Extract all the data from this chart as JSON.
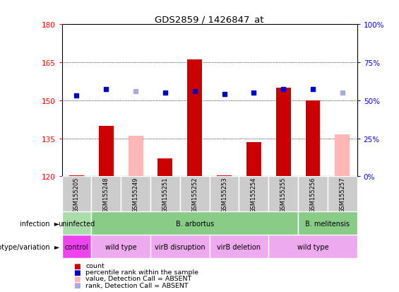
{
  "title": "GDS2859 / 1426847_at",
  "samples": [
    "GSM155205",
    "GSM155248",
    "GSM155249",
    "GSM155251",
    "GSM155252",
    "GSM155253",
    "GSM155254",
    "GSM155255",
    "GSM155256",
    "GSM155257"
  ],
  "bar_values": [
    120.5,
    140.0,
    null,
    127.0,
    166.0,
    120.5,
    133.5,
    155.0,
    150.0,
    null
  ],
  "bar_absent_values": [
    null,
    null,
    136.0,
    null,
    null,
    null,
    null,
    null,
    null,
    136.5
  ],
  "rank_values": [
    152.0,
    154.5,
    null,
    153.0,
    153.5,
    152.5,
    153.0,
    154.5,
    154.5,
    null
  ],
  "rank_absent_values": [
    null,
    null,
    153.5,
    null,
    null,
    null,
    null,
    null,
    null,
    153.0
  ],
  "ylim": [
    120,
    180
  ],
  "yticks": [
    120,
    135,
    150,
    165,
    180
  ],
  "y2lim": [
    0,
    100
  ],
  "y2ticks": [
    0,
    25,
    50,
    75,
    100
  ],
  "y2ticklabels": [
    "0%",
    "25%",
    "50%",
    "75%",
    "100%"
  ],
  "bar_color": "#cc0000",
  "bar_absent_color": "#ffb6b6",
  "rank_color": "#0000cc",
  "rank_absent_color": "#aaaadd",
  "infection_labels": [
    {
      "text": "uninfected",
      "start": 0,
      "end": 1,
      "color": "#aaddaa"
    },
    {
      "text": "B. arbortus",
      "start": 1,
      "end": 8,
      "color": "#88cc88"
    },
    {
      "text": "B. melitensis",
      "start": 8,
      "end": 10,
      "color": "#88cc88"
    }
  ],
  "genotype_labels": [
    {
      "text": "control",
      "start": 0,
      "end": 1,
      "color": "#ee44ee"
    },
    {
      "text": "wild type",
      "start": 1,
      "end": 3,
      "color": "#eeaaee"
    },
    {
      "text": "virB disruption",
      "start": 3,
      "end": 5,
      "color": "#eeaaee"
    },
    {
      "text": "virB deletion",
      "start": 5,
      "end": 7,
      "color": "#eeaaee"
    },
    {
      "text": "wild type",
      "start": 7,
      "end": 10,
      "color": "#eeaaee"
    }
  ],
  "legend_items": [
    {
      "color": "#cc0000",
      "label": "count"
    },
    {
      "color": "#0000cc",
      "label": "percentile rank within the sample"
    },
    {
      "color": "#ffb6b6",
      "label": "value, Detection Call = ABSENT"
    },
    {
      "color": "#aaaadd",
      "label": "rank, Detection Call = ABSENT"
    }
  ],
  "bar_width": 0.5,
  "sample_cell_color": "#cccccc",
  "sample_cell_border": "#ffffff"
}
